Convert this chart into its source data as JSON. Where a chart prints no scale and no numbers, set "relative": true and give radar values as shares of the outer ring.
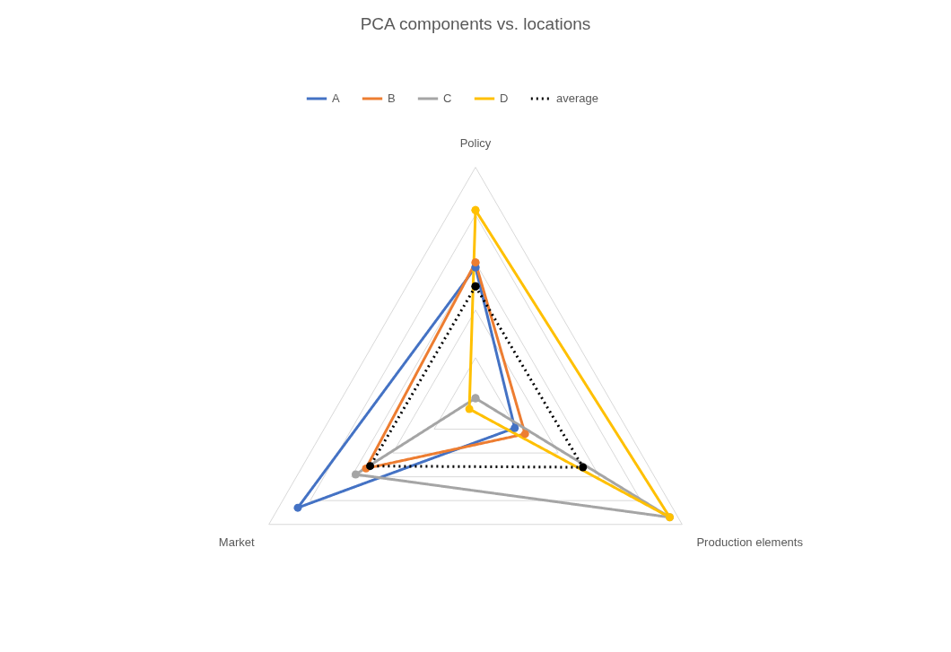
{
  "chart_data": {
    "type": "radar",
    "title": "PCA components vs. locations",
    "categories": [
      "Policy",
      "Production elements",
      "Market"
    ],
    "relative": true,
    "grid": true,
    "legend": "top",
    "marker": "circle",
    "series": [
      {
        "name": "A",
        "color": "#4472c4",
        "values": [
          0.58,
          0.19,
          0.86
        ]
      },
      {
        "name": "B",
        "color": "#ed7d31",
        "values": [
          0.6,
          0.24,
          0.53
        ]
      },
      {
        "name": "C",
        "color": "#a5a5a5",
        "values": [
          0.03,
          0.94,
          0.58
        ]
      },
      {
        "name": "D",
        "color": "#ffc000",
        "values": [
          0.82,
          0.94,
          0.03
        ]
      },
      {
        "name": "average",
        "color": "#000000",
        "line_style": "dotted",
        "values": [
          0.5,
          0.52,
          0.51
        ]
      }
    ]
  }
}
